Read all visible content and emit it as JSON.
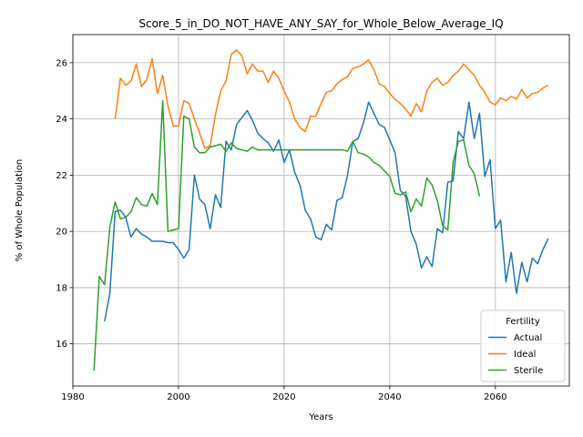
{
  "chart_data": {
    "type": "line",
    "title": "Score_5_in_DO_NOT_HAVE_ANY_SAY_for_Whole_Below_Average_IQ",
    "xlabel": "Years",
    "ylabel": "% of Whole Population",
    "xlim": [
      1980,
      2074
    ],
    "ylim": [
      14.5,
      27.0
    ],
    "xticks": [
      1980,
      2000,
      2020,
      2040,
      2060
    ],
    "yticks": [
      16,
      18,
      20,
      22,
      24,
      26
    ],
    "grid": true,
    "legend": {
      "title": "Fertility",
      "placement": "lower-right"
    },
    "series": [
      {
        "name": "Actual",
        "color": "#1f77b4",
        "x": [
          1986,
          1987,
          1988,
          1989,
          1990,
          1991,
          1992,
          1993,
          1994,
          1995,
          1996,
          1997,
          1998,
          1999,
          2000,
          2001,
          2002,
          2003,
          2004,
          2005,
          2006,
          2007,
          2008,
          2009,
          2010,
          2011,
          2012,
          2013,
          2014,
          2015,
          2016,
          2017,
          2018,
          2019,
          2020,
          2021,
          2022,
          2023,
          2024,
          2025,
          2026,
          2027,
          2028,
          2029,
          2030,
          2031,
          2032,
          2033,
          2034,
          2035,
          2036,
          2037,
          2038,
          2039,
          2040,
          2041,
          2042,
          2043,
          2044,
          2045,
          2046,
          2047,
          2048,
          2049,
          2050,
          2051,
          2052,
          2053,
          2054,
          2055,
          2056,
          2057,
          2058,
          2059,
          2060,
          2061,
          2062,
          2063,
          2064,
          2065,
          2066,
          2067,
          2068,
          2069,
          2070
        ],
        "y": [
          16.8,
          17.8,
          20.7,
          20.75,
          20.5,
          19.8,
          20.1,
          19.9,
          19.8,
          19.65,
          19.65,
          19.65,
          19.6,
          19.6,
          19.35,
          19.05,
          19.35,
          22.0,
          21.15,
          20.95,
          20.1,
          21.3,
          20.85,
          23.2,
          22.9,
          23.8,
          24.05,
          24.3,
          23.95,
          23.5,
          23.3,
          23.15,
          22.85,
          23.25,
          22.45,
          22.9,
          22.1,
          21.65,
          20.75,
          20.45,
          19.8,
          19.7,
          20.25,
          20.05,
          21.1,
          21.2,
          22.0,
          23.2,
          23.3,
          23.85,
          24.6,
          24.2,
          23.8,
          23.7,
          23.25,
          22.8,
          21.45,
          21.25,
          20.0,
          19.55,
          18.7,
          19.1,
          18.75,
          20.1,
          19.95,
          21.75,
          21.8,
          23.55,
          23.3,
          24.6,
          23.3,
          24.2,
          21.95,
          22.55,
          20.1,
          20.4,
          18.2,
          19.25,
          17.8,
          18.9,
          18.2,
          19.05,
          18.85,
          19.35,
          19.75
        ]
      },
      {
        "name": "Ideal",
        "color": "#ff7f0e",
        "x": [
          1988,
          1989,
          1990,
          1991,
          1992,
          1993,
          1994,
          1995,
          1996,
          1997,
          1998,
          1999,
          2000,
          2001,
          2002,
          2003,
          2004,
          2005,
          2006,
          2007,
          2008,
          2009,
          2010,
          2011,
          2012,
          2013,
          2014,
          2015,
          2016,
          2017,
          2018,
          2019,
          2020,
          2021,
          2022,
          2023,
          2024,
          2025,
          2026,
          2027,
          2028,
          2029,
          2030,
          2031,
          2032,
          2033,
          2034,
          2035,
          2036,
          2037,
          2038,
          2039,
          2040,
          2041,
          2042,
          2043,
          2044,
          2045,
          2046,
          2047,
          2048,
          2049,
          2050,
          2051,
          2052,
          2053,
          2054,
          2055,
          2056,
          2057,
          2058,
          2059,
          2060,
          2061,
          2062,
          2063,
          2064,
          2065,
          2066,
          2067,
          2068,
          2069,
          2070
        ],
        "y": [
          24.0,
          25.45,
          25.2,
          25.35,
          25.95,
          25.15,
          25.4,
          26.15,
          24.9,
          25.55,
          24.45,
          23.75,
          23.75,
          24.65,
          24.55,
          24.0,
          23.5,
          22.95,
          23.05,
          24.15,
          25.0,
          25.35,
          26.3,
          26.45,
          26.25,
          25.6,
          25.95,
          25.7,
          25.7,
          25.3,
          25.7,
          25.45,
          25.0,
          24.6,
          24.0,
          23.7,
          23.55,
          24.1,
          24.1,
          24.55,
          24.95,
          25.0,
          25.25,
          25.4,
          25.5,
          25.8,
          25.85,
          25.95,
          26.1,
          25.75,
          25.25,
          25.15,
          24.9,
          24.7,
          24.55,
          24.35,
          24.1,
          24.55,
          24.25,
          25.0,
          25.3,
          25.45,
          25.2,
          25.3,
          25.55,
          25.7,
          25.95,
          25.75,
          25.55,
          25.2,
          24.95,
          24.6,
          24.5,
          24.75,
          24.65,
          24.8,
          24.7,
          25.05,
          24.75,
          24.9,
          24.95,
          25.1,
          25.2
        ]
      },
      {
        "name": "Sterile",
        "color": "#2ca02c",
        "x": [
          1984,
          1985,
          1986,
          1987,
          1988,
          1989,
          1990,
          1991,
          1992,
          1993,
          1994,
          1995,
          1996,
          1997,
          1998,
          1999,
          2000,
          2001,
          2002,
          2003,
          2004,
          2005,
          2006,
          2007,
          2008,
          2009,
          2010,
          2011,
          2012,
          2013,
          2014,
          2015,
          2016,
          2017,
          2018,
          2019,
          2020,
          2021,
          2022,
          2023,
          2024,
          2025,
          2026,
          2027,
          2028,
          2029,
          2030,
          2031,
          2032,
          2033,
          2034,
          2035,
          2036,
          2037,
          2038,
          2039,
          2040,
          2041,
          2042,
          2043,
          2044,
          2045,
          2046,
          2047,
          2048,
          2049,
          2050,
          2051,
          2052,
          2053,
          2054,
          2055,
          2056,
          2057
        ],
        "y": [
          15.05,
          18.4,
          18.1,
          20.15,
          21.05,
          20.45,
          20.5,
          20.7,
          21.2,
          20.95,
          20.9,
          21.35,
          20.95,
          24.65,
          20.0,
          20.05,
          20.1,
          24.1,
          24.0,
          23.0,
          22.8,
          22.8,
          23.0,
          23.05,
          23.1,
          22.85,
          23.15,
          22.95,
          22.9,
          22.85,
          23.0,
          22.9,
          22.9,
          22.9,
          22.9,
          22.9,
          22.9,
          22.9,
          22.9,
          22.9,
          22.9,
          22.9,
          22.9,
          22.9,
          22.9,
          22.9,
          22.9,
          22.9,
          22.85,
          23.2,
          22.8,
          22.75,
          22.65,
          22.45,
          22.35,
          22.15,
          21.95,
          21.35,
          21.3,
          21.4,
          20.7,
          21.15,
          20.9,
          21.9,
          21.65,
          21.1,
          20.2,
          20.05,
          22.45,
          23.2,
          23.25,
          22.35,
          22.05,
          21.25
        ]
      }
    ]
  }
}
